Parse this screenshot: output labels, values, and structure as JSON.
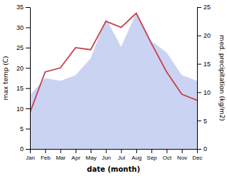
{
  "chart_data": {
    "type": "line",
    "xlabel": "date (month)",
    "ylabel": "max temp (C)",
    "y2label": "med. precipitation (kg/m2)",
    "categories": [
      "Jan",
      "Feb",
      "Mar",
      "Apr",
      "May",
      "Jun",
      "Jul",
      "Aug",
      "Sep",
      "Oct",
      "Nov",
      "Dec"
    ],
    "series": [
      {
        "type": "area",
        "axis": "y2",
        "color": "#b8c4ee",
        "values": [
          9.5,
          12.5,
          12,
          13,
          16,
          23,
          18,
          24,
          19,
          17,
          13,
          12
        ]
      },
      {
        "type": "line",
        "color": "#c8404a",
        "values": [
          9,
          19,
          20,
          25,
          24.5,
          31.5,
          30,
          33.5,
          26,
          19,
          13.5,
          12
        ]
      }
    ],
    "ylim": [
      0,
      35
    ],
    "yticks": [
      0,
      5,
      10,
      15,
      20,
      25,
      30,
      35
    ],
    "y2lim": [
      0,
      25
    ],
    "y2ticks": [
      0,
      5,
      10,
      15,
      20,
      25
    ],
    "grid": false
  }
}
